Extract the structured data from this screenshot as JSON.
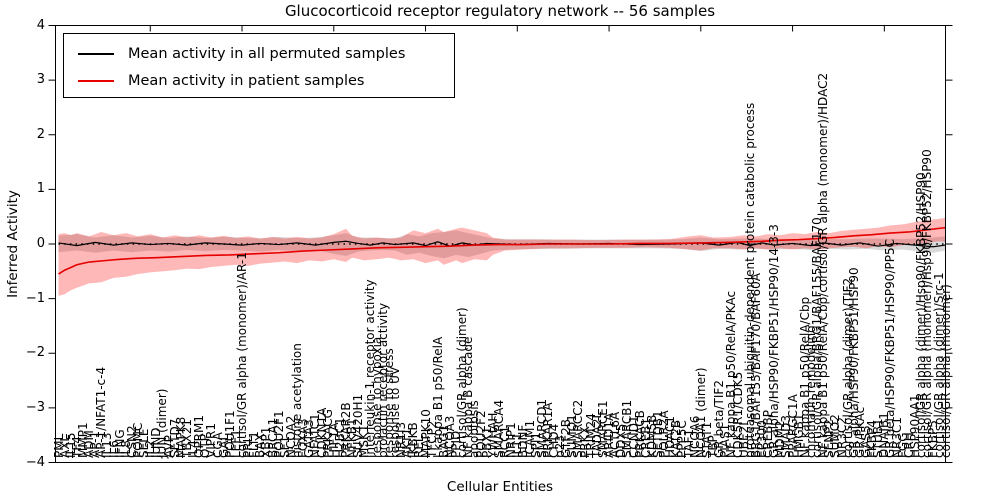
{
  "title": "Glucocorticoid receptor regulatory network -- 56 samples",
  "axes": {
    "ylabel": "Inferred Activity",
    "xlabel": "Cellular Entities",
    "ylim": [
      -4,
      4
    ],
    "yticks": [
      4,
      3,
      2,
      1,
      0,
      -1,
      -2,
      -3,
      -4
    ],
    "grid": false
  },
  "legend": {
    "position": "upper-left",
    "entries": [
      {
        "label": "Mean activity in all permuted samples",
        "color": "#000000"
      },
      {
        "label": "Mean activity in patient samples",
        "color": "#e60000"
      }
    ]
  },
  "colors": {
    "permuted_line": "#000000",
    "patient_line": "#e60000",
    "permuted_band": "rgba(0,0,0,0.15)",
    "patient_band": "rgba(255,0,0,0.28)"
  },
  "chart_data": {
    "type": "line",
    "title": "Glucocorticoid receptor regulatory network -- 56 samples",
    "xlabel": "Cellular Entities",
    "ylabel": "Inferred Activity",
    "ylim": [
      -4,
      4
    ],
    "legend_position": "upper left",
    "zero_line_dotted": true,
    "categories": [
      "PML",
      "AXL",
      "IL15",
      "TF4",
      "MMP1",
      "ADM",
      "AP-1",
      "AP-1/NFAT1-c-4",
      "IL13",
      "IL6",
      "IFNG",
      "IL8",
      "CSN2",
      "POMC",
      "SELE",
      "IL2",
      "JUND",
      "JUN (dimer)",
      "AVP",
      "SETD7",
      "MAPK8",
      "TBX21",
      "IL4",
      "OPRM1",
      "OTP",
      "VIPR1",
      "CGA",
      "GAL",
      "POU1F1",
      "LEF1",
      "cortisol/GR alpha (monomer)/AR-1",
      "PRL",
      "FLT1",
      "BAX",
      "XBP1",
      "BRCA1",
      "POU2F1",
      "SF1",
      "NCOA2",
      "histone acetylation",
      "FOXA3",
      "GATA3",
      "NFATC1",
      "CDKN1A",
      "PRKACG",
      "HIF1A",
      "H2BC1",
      "PRKAR2B",
      "NFKB1",
      "SUV420H1",
      "MSK1",
      "interleukin-1 receptor activity",
      "response to hypoxia",
      "prolactin receptor activity",
      "response to stress",
      "response to UV",
      "NR1I3",
      "AKT1",
      "IKBKB",
      "REL",
      "MAPK10",
      "TFCP2",
      "I kappa B1 p50/RelA",
      "BAG1",
      "NCOA3",
      "PPID",
      "cortisol/GR alpha (dimer)",
      "NF kappa B cascade",
      "apoptosis",
      "POU2F2",
      "PBX1",
      "YWHAH",
      "SMARCA4",
      "RCC1",
      "NRIP1",
      "IL11",
      "BDNF",
      "ICAM1",
      "SPI1",
      "SMARCD1",
      "PRKAR1A",
      "CHD4",
      "p23",
      "GTF2B",
      "SUMO1",
      "SMARCC2",
      "PRKX",
      "TRIM24",
      "TADA2L",
      "SMARCE1",
      "ARID1A",
      "ACTL6A",
      "DDX5",
      "SMARCB1",
      "CCND1",
      "PRKACB",
      "CREB1",
      "KDM5B",
      "SETDB1",
      "POLR2A",
      "HDAC1",
      "KAT2B",
      "PPP5C",
      "TAF1",
      "NCOA6",
      "NCOA1 (dimer)",
      "STAT1",
      "TBP",
      "GR beta/TIF2",
      "PIAS1",
      "NF kappa B1 p50/RelA/PKAc",
      "CDK5R1/CDK5",
      "UBE2I",
      "proteasomal ubiquitin-dependent protein catabolic process",
      "BRG1/BAF155/BAF170/BAF60A",
      "EP300",
      "CREBBP",
      "GR alpha/HSP90/FKBP51/HSP90/14-3-3",
      "MDM2",
      "SMAD3",
      "PPARGC1A",
      "HMGB1",
      "NF kappa B1 p50/RelA/Cbp",
      "chromatin remodeling",
      "cortisol/GR alpha/BRG1/BAF155/BAF170",
      "NF kappa B1 p50/RelA/Cbp/cortisol/GR alpha (monomer)/HDAC2",
      "SENP2",
      "SUMO2",
      "NR3C2",
      "cortisol/GR alpha (dimer)/TIF2",
      "GR alpha/HSP90/FKBP51/HSP90",
      "GR/PKAc",
      "GAS5",
      "FKBP4",
      "STUB1",
      "DNAJB1",
      "GR beta/HSP90/FKBP51/HSP90/PP5C",
      "NR3C1",
      "FGG",
      "CRH",
      "HSP90AA1",
      "cortisol/GR alpha (dimer)/Hsp90/FKBP52/HSP90",
      "cortisol/GR alpha (monomer)/Hsp90/FKBP52/HSP90",
      "FKBP5",
      "cortisol/GR alpha (dimer)/Src-1",
      "cortisol/GR alpha (monomer)"
    ],
    "series": [
      {
        "name": "Mean activity in all permuted samples",
        "color": "#000000",
        "width": 1.2,
        "points": [
          [
            0,
            0.02
          ],
          [
            3,
            -0.03
          ],
          [
            6,
            0.03
          ],
          [
            9,
            -0.02
          ],
          [
            12,
            0.02
          ],
          [
            15,
            -0.01
          ],
          [
            18,
            0.01
          ],
          [
            21,
            -0.02
          ],
          [
            24,
            0.02
          ],
          [
            27,
            0.0
          ],
          [
            30,
            -0.02
          ],
          [
            33,
            0.01
          ],
          [
            36,
            -0.01
          ],
          [
            39,
            0.02
          ],
          [
            42,
            -0.02
          ],
          [
            45,
            0.03
          ],
          [
            47,
            0.05
          ],
          [
            49,
            0.01
          ],
          [
            51,
            -0.02
          ],
          [
            53,
            0.02
          ],
          [
            55,
            -0.01
          ],
          [
            58,
            0.02
          ],
          [
            60,
            -0.03
          ],
          [
            62,
            0.04
          ],
          [
            64,
            -0.04
          ],
          [
            66,
            0.02
          ],
          [
            68,
            -0.02
          ],
          [
            70,
            0.01
          ],
          [
            75,
            -0.01
          ],
          [
            80,
            0.01
          ],
          [
            85,
            0.0
          ],
          [
            90,
            0.01
          ],
          [
            95,
            -0.01
          ],
          [
            100,
            0.0
          ],
          [
            105,
            0.02
          ],
          [
            108,
            -0.02
          ],
          [
            111,
            0.03
          ],
          [
            113,
            -0.03
          ],
          [
            115,
            0.02
          ],
          [
            117,
            -0.02
          ],
          [
            120,
            0.01
          ],
          [
            123,
            -0.03
          ],
          [
            125,
            0.02
          ],
          [
            128,
            -0.02
          ],
          [
            131,
            0.02
          ],
          [
            134,
            -0.04
          ],
          [
            137,
            0.01
          ],
          [
            140,
            -0.02
          ],
          [
            143,
            -0.05
          ],
          [
            145,
            -0.02
          ]
        ]
      },
      {
        "name": "Mean activity in patient samples",
        "color": "#e60000",
        "width": 1.6,
        "points": [
          [
            0,
            -0.55
          ],
          [
            1,
            -0.48
          ],
          [
            2,
            -0.43
          ],
          [
            3,
            -0.38
          ],
          [
            5,
            -0.33
          ],
          [
            8,
            -0.3
          ],
          [
            10,
            -0.28
          ],
          [
            13,
            -0.26
          ],
          [
            16,
            -0.25
          ],
          [
            20,
            -0.23
          ],
          [
            24,
            -0.21
          ],
          [
            28,
            -0.2
          ],
          [
            32,
            -0.18
          ],
          [
            36,
            -0.16
          ],
          [
            40,
            -0.13
          ],
          [
            44,
            -0.11
          ],
          [
            48,
            -0.09
          ],
          [
            52,
            -0.07
          ],
          [
            56,
            -0.06
          ],
          [
            60,
            -0.05
          ],
          [
            64,
            -0.04
          ],
          [
            68,
            -0.02
          ],
          [
            72,
            -0.01
          ],
          [
            76,
            -0.01
          ],
          [
            80,
            0.0
          ],
          [
            85,
            0.0
          ],
          [
            90,
            0.0
          ],
          [
            95,
            0.01
          ],
          [
            100,
            0.01
          ],
          [
            105,
            0.02
          ],
          [
            110,
            0.03
          ],
          [
            115,
            0.05
          ],
          [
            118,
            0.07
          ],
          [
            121,
            0.08
          ],
          [
            124,
            0.1
          ],
          [
            127,
            0.12
          ],
          [
            130,
            0.15
          ],
          [
            133,
            0.17
          ],
          [
            136,
            0.2
          ],
          [
            139,
            0.22
          ],
          [
            142,
            0.26
          ],
          [
            145,
            0.3
          ]
        ]
      }
    ],
    "bands": [
      {
        "name": "permuted-activity-range",
        "color": "rgba(0,0,0,0.15)",
        "points": [
          [
            0,
            -0.15,
            0.15
          ],
          [
            3,
            -0.12,
            0.18
          ],
          [
            6,
            -0.16,
            0.12
          ],
          [
            9,
            -0.12,
            0.16
          ],
          [
            12,
            -0.15,
            0.12
          ],
          [
            15,
            -0.12,
            0.15
          ],
          [
            18,
            -0.14,
            0.11
          ],
          [
            21,
            -0.11,
            0.14
          ],
          [
            24,
            -0.13,
            0.11
          ],
          [
            27,
            -0.11,
            0.13
          ],
          [
            30,
            -0.12,
            0.12
          ],
          [
            33,
            -0.14,
            0.1
          ],
          [
            36,
            -0.11,
            0.13
          ],
          [
            39,
            -0.13,
            0.11
          ],
          [
            42,
            -0.11,
            0.12
          ],
          [
            45,
            -0.18,
            0.16
          ],
          [
            47,
            -0.22,
            0.2
          ],
          [
            49,
            -0.14,
            0.12
          ],
          [
            51,
            -0.12,
            0.12
          ],
          [
            53,
            -0.11,
            0.11
          ],
          [
            55,
            -0.12,
            0.1
          ],
          [
            57,
            -0.2,
            0.18
          ],
          [
            59,
            -0.16,
            0.14
          ],
          [
            61,
            -0.22,
            0.2
          ],
          [
            63,
            -0.26,
            0.22
          ],
          [
            65,
            -0.2,
            0.25
          ],
          [
            67,
            -0.24,
            0.2
          ],
          [
            69,
            -0.18,
            0.15
          ],
          [
            71,
            -0.12,
            0.1
          ],
          [
            74,
            -0.1,
            0.09
          ],
          [
            78,
            -0.09,
            0.09
          ],
          [
            82,
            -0.09,
            0.08
          ],
          [
            86,
            -0.08,
            0.08
          ],
          [
            90,
            -0.08,
            0.08
          ],
          [
            94,
            -0.08,
            0.08
          ],
          [
            98,
            -0.08,
            0.08
          ],
          [
            102,
            -0.09,
            0.09
          ],
          [
            105,
            -0.13,
            0.12
          ],
          [
            108,
            -0.09,
            0.09
          ],
          [
            111,
            -0.1,
            0.1
          ],
          [
            114,
            -0.09,
            0.1
          ],
          [
            117,
            -0.1,
            0.09
          ],
          [
            120,
            -0.09,
            0.09
          ],
          [
            123,
            -0.11,
            0.1
          ],
          [
            126,
            -0.09,
            0.09
          ],
          [
            129,
            -0.1,
            0.09
          ],
          [
            132,
            -0.09,
            0.1
          ],
          [
            135,
            -0.12,
            0.1
          ],
          [
            138,
            -0.1,
            0.09
          ],
          [
            141,
            -0.14,
            0.11
          ],
          [
            143,
            -0.16,
            0.12
          ],
          [
            145,
            -0.12,
            0.14
          ]
        ]
      },
      {
        "name": "patient-activity-range",
        "color": "rgba(255,0,0,0.28)",
        "points": [
          [
            0,
            -0.95,
            0.18
          ],
          [
            1,
            -0.92,
            0.2
          ],
          [
            2,
            -0.85,
            0.16
          ],
          [
            3,
            -0.8,
            0.2
          ],
          [
            5,
            -0.72,
            0.14
          ],
          [
            7,
            -0.7,
            0.22
          ],
          [
            9,
            -0.62,
            0.16
          ],
          [
            11,
            -0.6,
            0.2
          ],
          [
            13,
            -0.55,
            0.14
          ],
          [
            15,
            -0.52,
            0.18
          ],
          [
            17,
            -0.5,
            0.12
          ],
          [
            19,
            -0.48,
            0.16
          ],
          [
            21,
            -0.45,
            0.12
          ],
          [
            23,
            -0.46,
            0.16
          ],
          [
            25,
            -0.42,
            0.12
          ],
          [
            27,
            -0.4,
            0.15
          ],
          [
            29,
            -0.38,
            0.11
          ],
          [
            31,
            -0.4,
            0.14
          ],
          [
            33,
            -0.36,
            0.1
          ],
          [
            35,
            -0.34,
            0.13
          ],
          [
            37,
            -0.32,
            0.1
          ],
          [
            39,
            -0.35,
            0.13
          ],
          [
            41,
            -0.3,
            0.1
          ],
          [
            43,
            -0.32,
            0.12
          ],
          [
            45,
            -0.28,
            0.18
          ],
          [
            47,
            -0.33,
            0.28
          ],
          [
            48,
            -0.25,
            0.15
          ],
          [
            50,
            -0.3,
            0.1
          ],
          [
            52,
            -0.28,
            0.12
          ],
          [
            54,
            -0.25,
            0.1
          ],
          [
            56,
            -0.3,
            0.12
          ],
          [
            58,
            -0.28,
            0.25
          ],
          [
            60,
            -0.35,
            0.2
          ],
          [
            62,
            -0.3,
            0.28
          ],
          [
            63,
            -0.38,
            0.22
          ],
          [
            65,
            -0.3,
            0.28
          ],
          [
            66,
            -0.35,
            0.3
          ],
          [
            68,
            -0.28,
            0.25
          ],
          [
            70,
            -0.3,
            0.2
          ],
          [
            71,
            -0.2,
            0.12
          ],
          [
            73,
            -0.12,
            0.08
          ],
          [
            76,
            -0.1,
            0.08
          ],
          [
            80,
            -0.08,
            0.08
          ],
          [
            84,
            -0.08,
            0.08
          ],
          [
            88,
            -0.07,
            0.07
          ],
          [
            92,
            -0.07,
            0.08
          ],
          [
            96,
            -0.06,
            0.08
          ],
          [
            100,
            -0.07,
            0.09
          ],
          [
            103,
            -0.1,
            0.14
          ],
          [
            105,
            -0.12,
            0.16
          ],
          [
            107,
            -0.08,
            0.12
          ],
          [
            110,
            -0.08,
            0.13
          ],
          [
            112,
            -0.1,
            0.16
          ],
          [
            114,
            -0.08,
            0.14
          ],
          [
            116,
            -0.1,
            0.18
          ],
          [
            118,
            -0.08,
            0.16
          ],
          [
            120,
            -0.1,
            0.2
          ],
          [
            122,
            -0.08,
            0.18
          ],
          [
            124,
            -0.1,
            0.22
          ],
          [
            126,
            -0.08,
            0.2
          ],
          [
            128,
            -0.06,
            0.24
          ],
          [
            130,
            -0.05,
            0.26
          ],
          [
            132,
            -0.08,
            0.28
          ],
          [
            134,
            -0.04,
            0.3
          ],
          [
            136,
            -0.06,
            0.34
          ],
          [
            138,
            -0.02,
            0.36
          ],
          [
            140,
            0.0,
            0.4
          ],
          [
            142,
            0.02,
            0.44
          ],
          [
            144,
            0.05,
            0.46
          ],
          [
            145,
            0.04,
            0.48
          ]
        ]
      }
    ]
  }
}
